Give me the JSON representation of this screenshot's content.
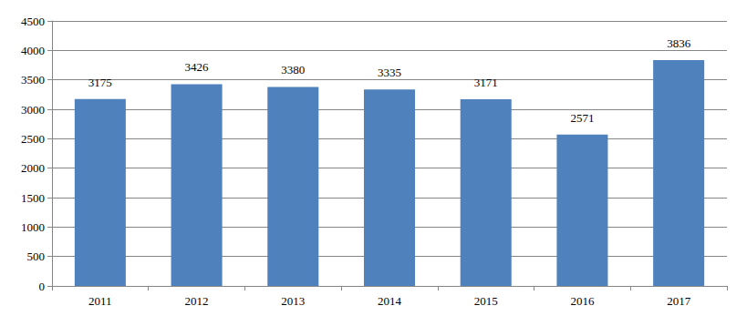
{
  "chart_data": {
    "type": "bar",
    "categories": [
      "2011",
      "2012",
      "2013",
      "2014",
      "2015",
      "2016",
      "2017"
    ],
    "values": [
      3175,
      3426,
      3380,
      3335,
      3171,
      2571,
      3836
    ],
    "color": "#4f81bd",
    "ylim": [
      0,
      4500
    ],
    "yticks": [
      0,
      500,
      1000,
      1500,
      2000,
      2500,
      3000,
      3500,
      4000,
      4500
    ],
    "grid": true,
    "data_labels": true
  }
}
